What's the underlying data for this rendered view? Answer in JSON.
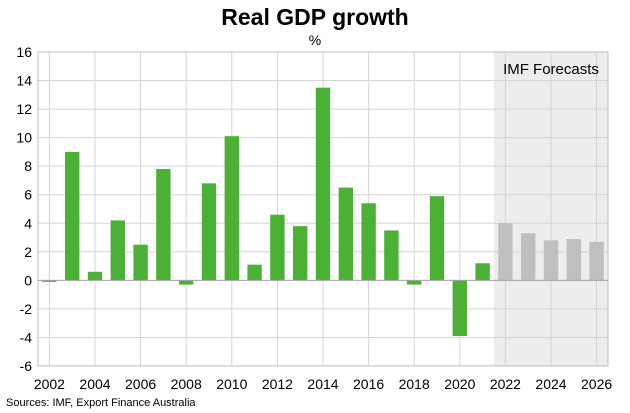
{
  "chart_data": {
    "type": "bar",
    "title": "Real GDP growth",
    "unit_label": "%",
    "source": "Sources: IMF, Export Finance Australia",
    "forecast_label": "IMF Forecasts",
    "forecast_start_year": 2022,
    "ylim": [
      -6,
      16
    ],
    "y_ticks": [
      -6,
      -4,
      -2,
      0,
      2,
      4,
      6,
      8,
      10,
      12,
      14,
      16
    ],
    "x_ticks": [
      2002,
      2004,
      2006,
      2008,
      2010,
      2012,
      2014,
      2016,
      2018,
      2020,
      2022,
      2024,
      2026
    ],
    "grid": true,
    "categories": [
      2002,
      2003,
      2004,
      2005,
      2006,
      2007,
      2008,
      2009,
      2010,
      2011,
      2012,
      2013,
      2014,
      2015,
      2016,
      2017,
      2018,
      2019,
      2020,
      2021,
      2022,
      2023,
      2024,
      2025,
      2026
    ],
    "values": [
      -0.1,
      9.0,
      0.6,
      4.2,
      2.5,
      7.8,
      -0.3,
      6.8,
      10.1,
      1.1,
      4.6,
      3.8,
      13.5,
      6.5,
      5.4,
      3.5,
      -0.3,
      5.9,
      -3.9,
      1.2,
      4.0,
      3.3,
      2.8,
      2.9,
      2.7
    ],
    "colors": {
      "actual": "#4caf36",
      "forecast": "#bfbfbf",
      "forecast_band": "#ededed",
      "grid": "#d4d4d4"
    }
  }
}
